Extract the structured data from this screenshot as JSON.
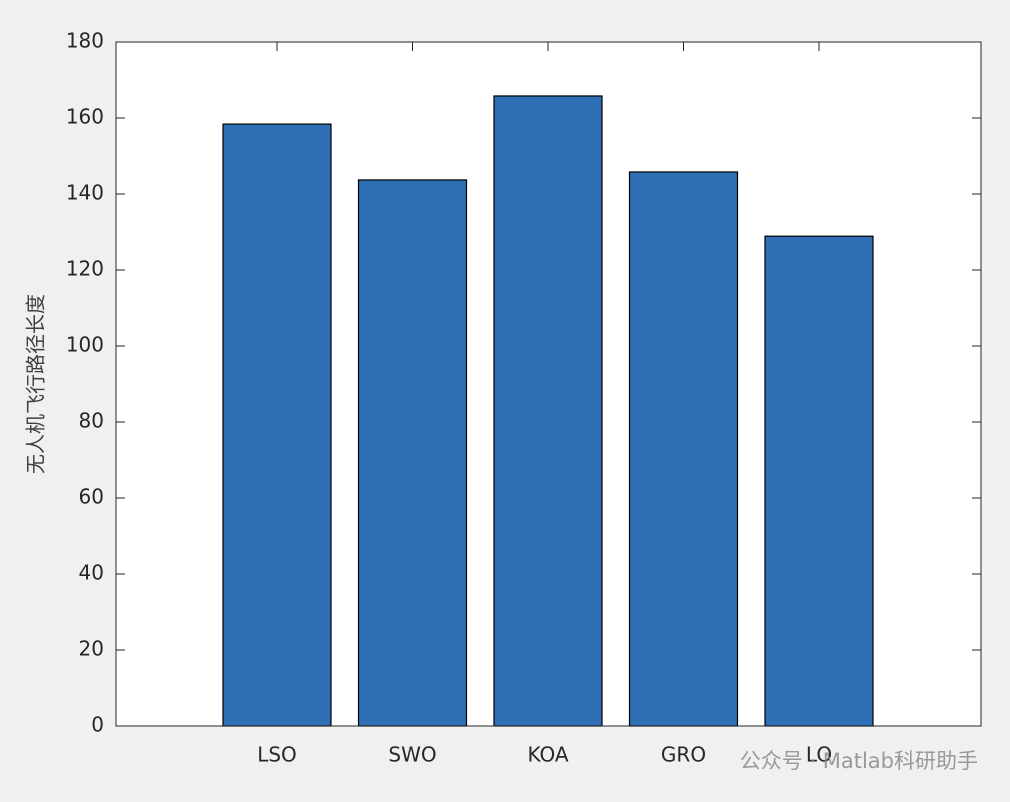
{
  "chart_data": {
    "type": "bar",
    "ylabel": "无人机飞行路径长度",
    "categories": [
      "LSO",
      "SWO",
      "KOA",
      "GRO",
      "LO"
    ],
    "values": [
      158.4,
      143.7,
      165.8,
      145.8,
      128.9
    ],
    "color": "#2e6eb5",
    "ylim": [
      0,
      180
    ],
    "yticks": [
      0,
      20,
      40,
      60,
      80,
      100,
      120,
      140,
      160,
      180
    ],
    "box": true,
    "watermark": "公众号 · Matlab科研助手"
  }
}
